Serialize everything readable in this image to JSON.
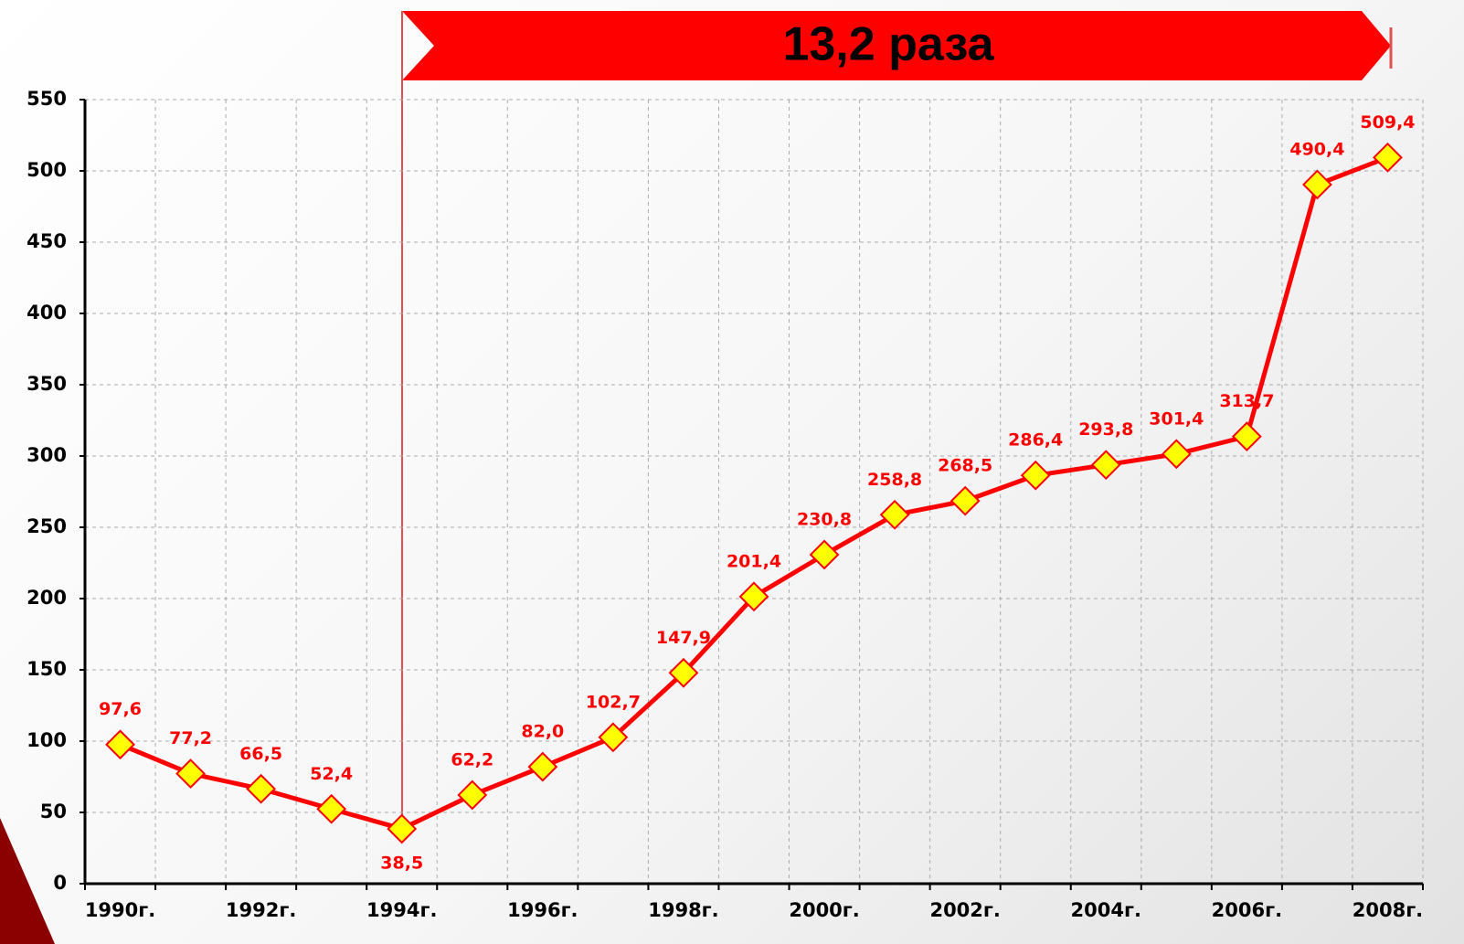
{
  "chart_data": {
    "type": "line",
    "annotation": "13,2 раза",
    "categories": [
      "1990г.",
      null,
      "1992г.",
      null,
      "1994г.",
      null,
      "1996г.",
      null,
      "1998г.",
      null,
      "2000г.",
      null,
      "2002г.",
      null,
      "2004г.",
      null,
      "2006г.",
      null,
      "2008г."
    ],
    "values": [
      97.6,
      77.2,
      66.5,
      52.4,
      38.5,
      62.2,
      82.0,
      102.7,
      147.9,
      201.4,
      230.8,
      258.8,
      268.5,
      286.4,
      293.8,
      301.4,
      313.7,
      490.4,
      509.4
    ],
    "value_labels": [
      "97,6",
      "77,2",
      "66,5",
      "52,4",
      "38,5",
      "62,2",
      "82,0",
      "102,7",
      "147,9",
      "201,4",
      "230,8",
      "258,8",
      "268,5",
      "286,4",
      "293,8",
      "301,4",
      "313,7",
      "490,4",
      "509,4"
    ],
    "color": "#ff0000",
    "marker_color": "#ffff00",
    "ylim": [
      0,
      550
    ],
    "yticks": [
      0,
      50,
      100,
      150,
      200,
      250,
      300,
      350,
      400,
      450,
      500,
      550
    ],
    "grid": true
  }
}
